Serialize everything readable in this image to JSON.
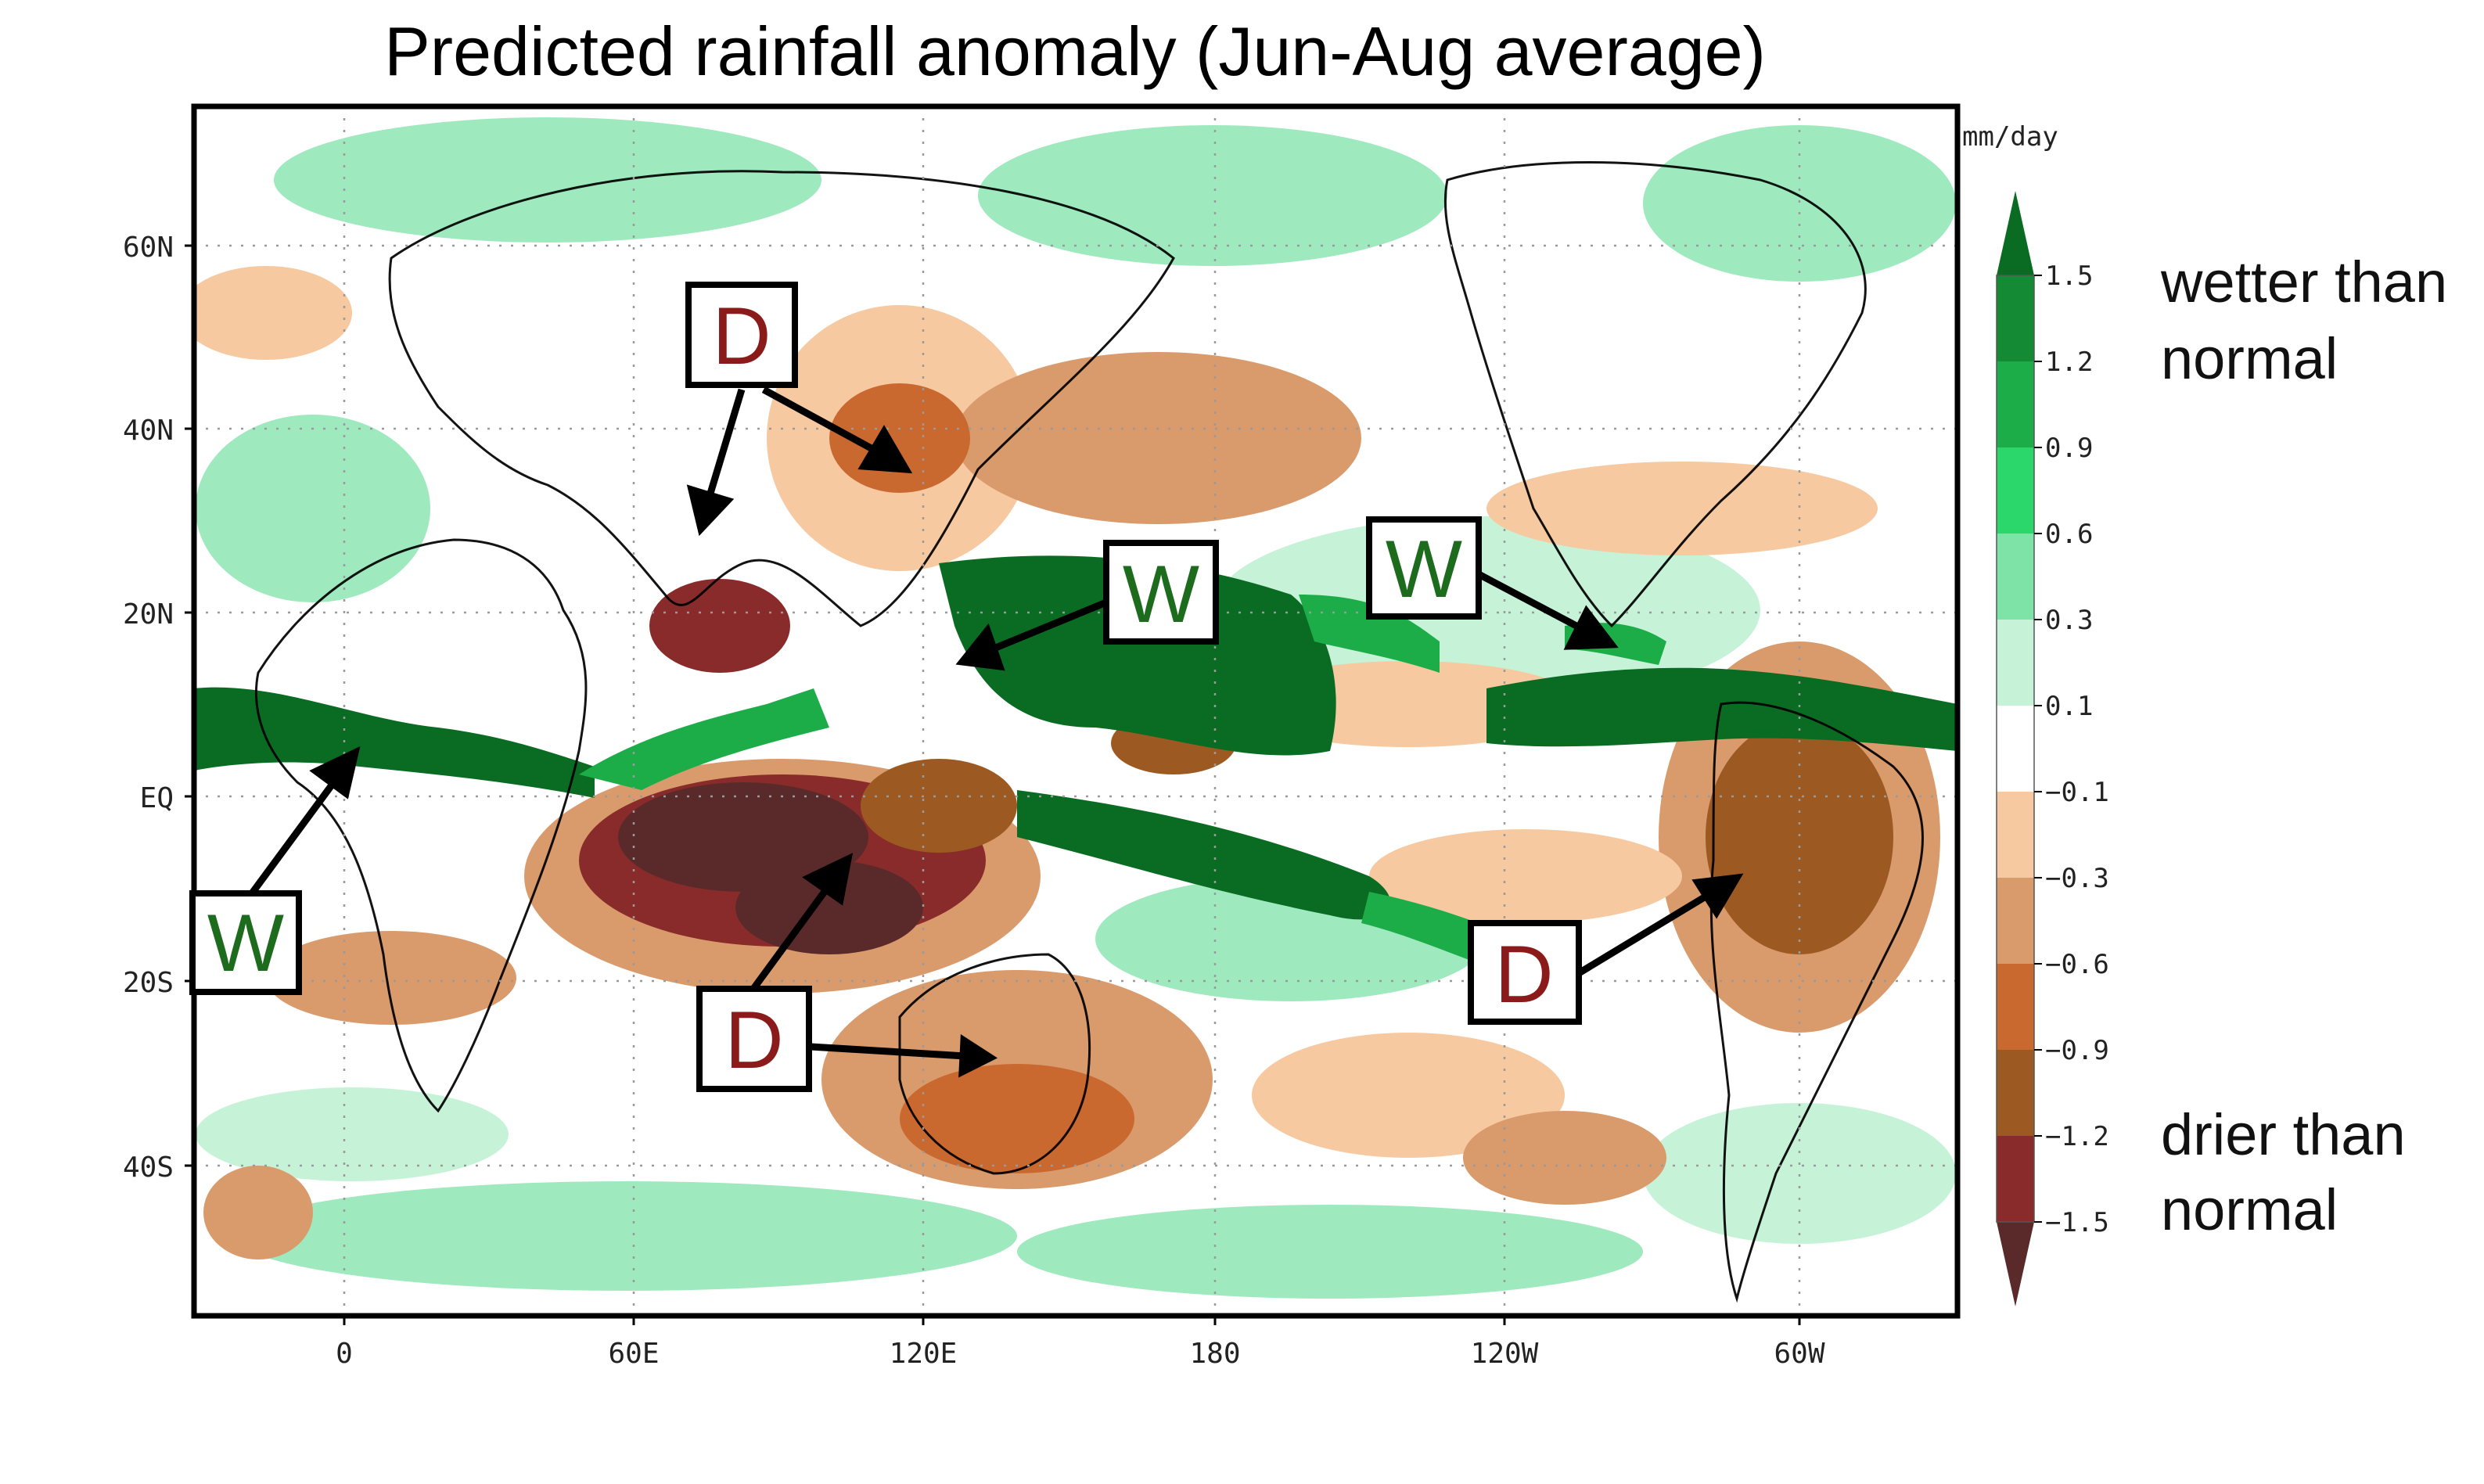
{
  "title": "Predicted rainfall anomaly (Jun-Aug average)",
  "units": "mm/day",
  "lat_labels": [
    "60N",
    "40N",
    "20N",
    "EQ",
    "20S",
    "40S"
  ],
  "lon_labels": [
    "0",
    "60E",
    "120E",
    "180",
    "120W",
    "60W"
  ],
  "colorbar": {
    "levels": [
      "1.5",
      "1.2",
      "0.9",
      "0.6",
      "0.3",
      "0.1",
      "−0.1",
      "−0.3",
      "−0.6",
      "−0.9",
      "−1.2",
      "−1.5"
    ],
    "colors": [
      "#0a6b22",
      "#138a33",
      "#1cad48",
      "#2bd66a",
      "#7de3a6",
      "#c6f3d8",
      "#ffffff",
      "#f6c9a0",
      "#d99a6c",
      "#c9682f",
      "#9c5a22",
      "#8a2b2b",
      "#5a2a2a"
    ],
    "wetter_label_line1": "wetter than",
    "wetter_label_line2": "normal",
    "drier_label_line1": "drier than",
    "drier_label_line2": "normal"
  },
  "annotations": [
    {
      "letter": "D",
      "kind": "dry",
      "color": "#8b1a1a"
    },
    {
      "letter": "W",
      "kind": "wet",
      "color": "#1d6b1d"
    },
    {
      "letter": "W",
      "kind": "wet",
      "color": "#1d6b1d"
    },
    {
      "letter": "W",
      "kind": "wet",
      "color": "#1d6b1d"
    },
    {
      "letter": "D",
      "kind": "dry",
      "color": "#8b1a1a"
    },
    {
      "letter": "D",
      "kind": "dry",
      "color": "#8b1a1a"
    }
  ],
  "colors": {
    "wet_dark": "#0a6b22",
    "wet_mid": "#1cad48",
    "wet_light": "#9fe9bf",
    "dry_light": "#f6c9a0",
    "dry_mid": "#d99a6c",
    "dry_dark": "#6b3a2a"
  }
}
